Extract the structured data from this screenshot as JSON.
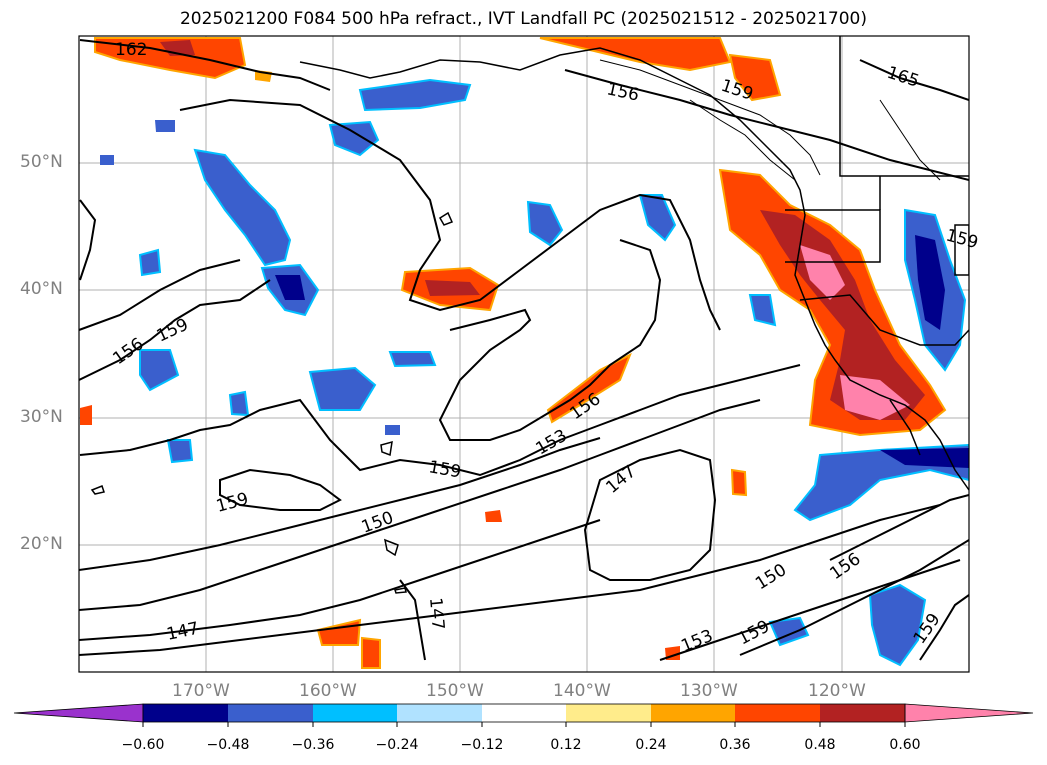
{
  "title": "2025021200 F084 500 hPa refract., IVT Landfall PC (2025021512 - 2025021700)",
  "map": {
    "lat_labels": [
      "50°N",
      "40°N",
      "30°N",
      "20°N"
    ],
    "lon_labels": [
      "170°W",
      "160°W",
      "150°W",
      "140°W",
      "130°W",
      "120°W"
    ],
    "contour_labels": [
      "162",
      "156",
      "159",
      "165",
      "159",
      "156",
      "159",
      "156",
      "153",
      "159",
      "147",
      "159",
      "150",
      "147",
      "147",
      "150",
      "153",
      "159",
      "156",
      "159"
    ]
  },
  "colorbar": {
    "tick_labels": [
      "−0.60",
      "−0.48",
      "−0.36",
      "−0.24",
      "−0.12",
      "0.12",
      "0.24",
      "0.36",
      "0.48",
      "0.60"
    ],
    "colors": [
      "#9a32cd",
      "#00008b",
      "#3a5fcd",
      "#00bfff",
      "#b0e2ff",
      "#ffffff",
      "#ffec8b",
      "#ffa500",
      "#ff4500",
      "#b22222",
      "#ff82ab"
    ]
  }
}
